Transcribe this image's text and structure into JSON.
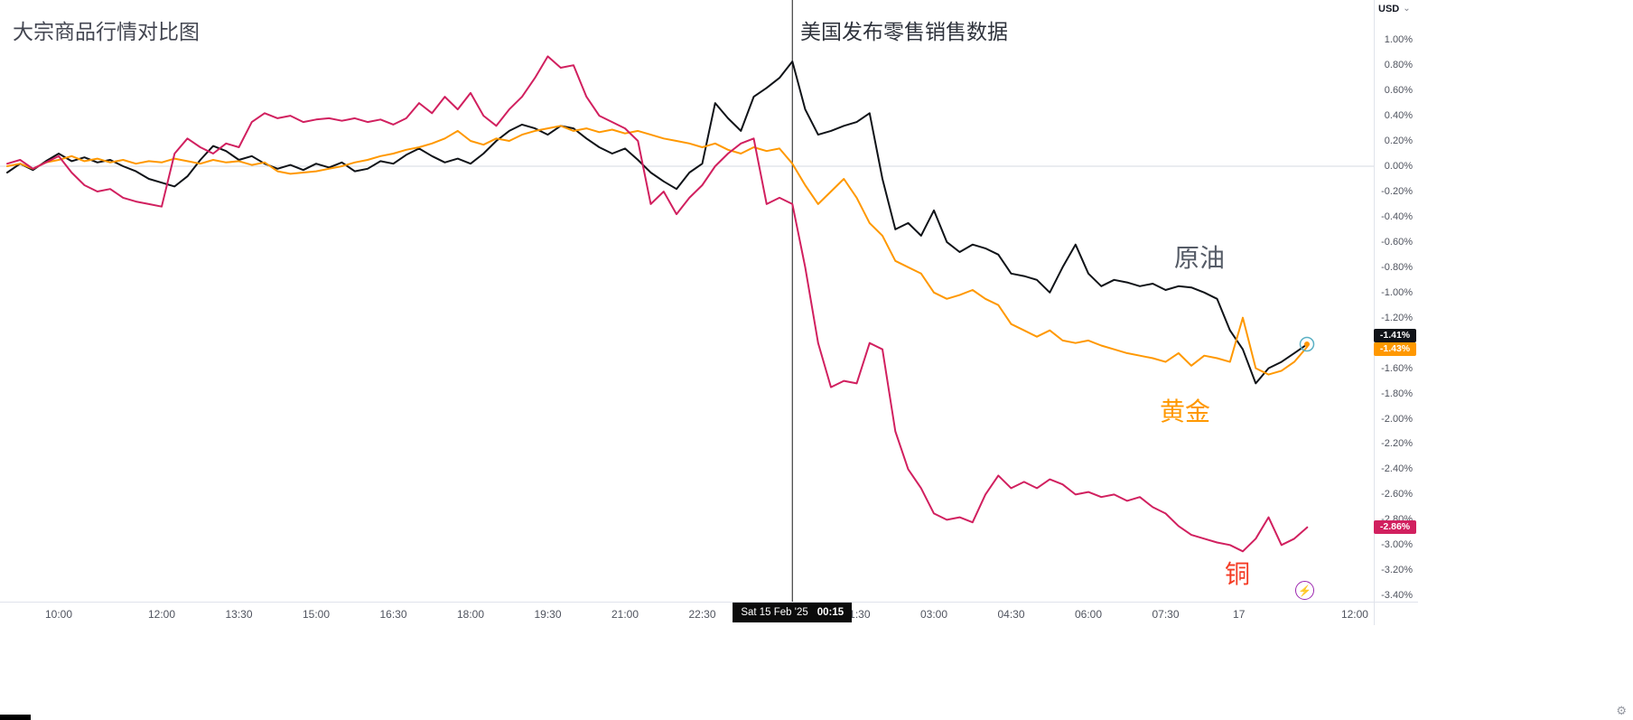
{
  "currency_selector": {
    "label": "USD"
  },
  "icons": {
    "caret_down": "⌄",
    "lightning": "⚡",
    "gear": "⚙"
  },
  "chart_data": {
    "type": "line",
    "title": "大宗商品行情对比图",
    "grid": "zero-line-only",
    "legend_position": "floating-labels-on-chart",
    "event_line": {
      "index": 61,
      "label": "美国发布零售销售数据",
      "date": "Sat 15 Feb '25",
      "time": "00:15"
    },
    "y_axis": {
      "max": 1.0,
      "min": -3.4,
      "step": 0.2,
      "unit": "%",
      "position": "right"
    },
    "x_axis": {
      "bar_interval_minutes": 15,
      "ticks": [
        {
          "label": "10:00",
          "i": 4
        },
        {
          "label": "12:00",
          "i": 12
        },
        {
          "label": "13:30",
          "i": 18
        },
        {
          "label": "15:00",
          "i": 24
        },
        {
          "label": "16:30",
          "i": 30
        },
        {
          "label": "18:00",
          "i": 36
        },
        {
          "label": "19:30",
          "i": 42
        },
        {
          "label": "21:00",
          "i": 48
        },
        {
          "label": "22:30",
          "i": 54
        },
        {
          "label": "01:30",
          "i": 66
        },
        {
          "label": "03:00",
          "i": 72
        },
        {
          "label": "04:30",
          "i": 78
        },
        {
          "label": "06:00",
          "i": 84
        },
        {
          "label": "07:30",
          "i": 90
        },
        {
          "label": "17",
          "i": 95.7
        },
        {
          "label": "12:00",
          "i": 104.7
        }
      ]
    },
    "series": [
      {
        "id": "oil",
        "name": "原油",
        "color": "#101318",
        "label_color": "#555b66",
        "last_label": "-1.41%",
        "values": [
          -0.05,
          0.02,
          -0.03,
          0.04,
          0.1,
          0.04,
          0.07,
          0.03,
          0.05,
          0.0,
          -0.04,
          -0.1,
          -0.13,
          -0.16,
          -0.08,
          0.05,
          0.16,
          0.12,
          0.05,
          0.08,
          0.02,
          -0.02,
          0.01,
          -0.03,
          0.02,
          -0.01,
          0.03,
          -0.04,
          -0.02,
          0.04,
          0.02,
          0.09,
          0.14,
          0.08,
          0.03,
          0.06,
          0.02,
          0.1,
          0.2,
          0.28,
          0.33,
          0.3,
          0.25,
          0.32,
          0.3,
          0.22,
          0.15,
          0.1,
          0.14,
          0.05,
          -0.05,
          -0.12,
          -0.18,
          -0.05,
          0.02,
          0.5,
          0.38,
          0.28,
          0.55,
          0.62,
          0.7,
          0.83,
          0.45,
          0.25,
          0.28,
          0.32,
          0.35,
          0.42,
          -0.1,
          -0.5,
          -0.45,
          -0.55,
          -0.35,
          -0.6,
          -0.68,
          -0.62,
          -0.65,
          -0.7,
          -0.85,
          -0.87,
          -0.9,
          -1.0,
          -0.8,
          -0.62,
          -0.85,
          -0.95,
          -0.9,
          -0.92,
          -0.95,
          -0.93,
          -0.98,
          -0.95,
          -0.96,
          -1.0,
          -1.05,
          -1.3,
          -1.45,
          -1.72,
          -1.6,
          -1.55,
          -1.48,
          -1.41
        ]
      },
      {
        "id": "gold",
        "name": "黄金",
        "color": "#ff9800",
        "label_color": "#ff9800",
        "last_label": "-1.43%",
        "values": [
          0.0,
          0.02,
          -0.02,
          0.03,
          0.05,
          0.08,
          0.04,
          0.06,
          0.03,
          0.05,
          0.02,
          0.04,
          0.03,
          0.06,
          0.04,
          0.02,
          0.05,
          0.03,
          0.04,
          0.01,
          0.03,
          -0.04,
          -0.06,
          -0.05,
          -0.04,
          -0.02,
          0.0,
          0.03,
          0.05,
          0.08,
          0.1,
          0.13,
          0.15,
          0.18,
          0.22,
          0.28,
          0.2,
          0.17,
          0.22,
          0.2,
          0.25,
          0.28,
          0.3,
          0.32,
          0.28,
          0.3,
          0.27,
          0.29,
          0.26,
          0.28,
          0.25,
          0.22,
          0.2,
          0.18,
          0.15,
          0.18,
          0.13,
          0.1,
          0.15,
          0.12,
          0.14,
          0.02,
          -0.15,
          -0.3,
          -0.2,
          -0.1,
          -0.25,
          -0.45,
          -0.55,
          -0.75,
          -0.8,
          -0.85,
          -1.0,
          -1.05,
          -1.02,
          -0.98,
          -1.05,
          -1.1,
          -1.25,
          -1.3,
          -1.35,
          -1.3,
          -1.38,
          -1.4,
          -1.38,
          -1.42,
          -1.45,
          -1.48,
          -1.5,
          -1.52,
          -1.55,
          -1.48,
          -1.58,
          -1.5,
          -1.52,
          -1.55,
          -1.2,
          -1.6,
          -1.65,
          -1.62,
          -1.55,
          -1.43
        ]
      },
      {
        "id": "copper",
        "name": "铜",
        "color": "#d1205f",
        "label_color": "#f43b24",
        "last_label": "-2.86%",
        "values": [
          0.02,
          0.05,
          -0.02,
          0.03,
          0.08,
          -0.05,
          -0.15,
          -0.2,
          -0.18,
          -0.25,
          -0.28,
          -0.3,
          -0.32,
          0.1,
          0.22,
          0.15,
          0.1,
          0.18,
          0.15,
          0.35,
          0.42,
          0.38,
          0.4,
          0.35,
          0.37,
          0.38,
          0.36,
          0.38,
          0.35,
          0.37,
          0.33,
          0.38,
          0.5,
          0.42,
          0.55,
          0.45,
          0.58,
          0.4,
          0.32,
          0.45,
          0.55,
          0.7,
          0.87,
          0.78,
          0.8,
          0.55,
          0.4,
          0.35,
          0.3,
          0.2,
          -0.3,
          -0.2,
          -0.38,
          -0.25,
          -0.15,
          0.0,
          0.1,
          0.18,
          0.22,
          -0.3,
          -0.25,
          -0.3,
          -0.8,
          -1.4,
          -1.75,
          -1.7,
          -1.72,
          -1.4,
          -1.45,
          -2.1,
          -2.4,
          -2.55,
          -2.75,
          -2.8,
          -2.78,
          -2.82,
          -2.6,
          -2.45,
          -2.55,
          -2.5,
          -2.55,
          -2.48,
          -2.52,
          -2.6,
          -2.58,
          -2.62,
          -2.6,
          -2.65,
          -2.62,
          -2.7,
          -2.75,
          -2.85,
          -2.92,
          -2.95,
          -2.98,
          -3.0,
          -3.05,
          -2.95,
          -2.78,
          -3.0,
          -2.95,
          -2.86
        ]
      }
    ]
  }
}
